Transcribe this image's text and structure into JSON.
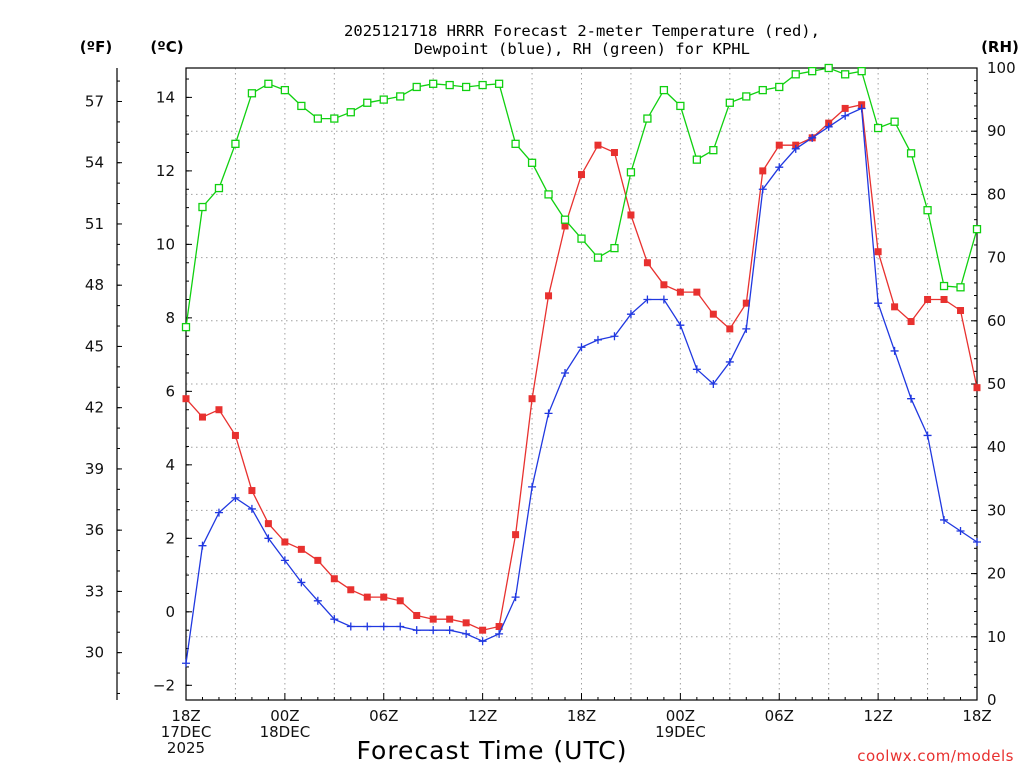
{
  "title": {
    "line1": "2025121718 HRRR Forecast 2-meter Temperature (red),",
    "line2": "Dewpoint (blue), RH (green) for KPHL"
  },
  "units": {
    "fahrenheit": "(ºF)",
    "celsius": "(ºC)",
    "rh": "(RH)"
  },
  "xlabel": "Forecast Time (UTC)",
  "credit": "coolwx.com/models",
  "colors": {
    "temperature": "#e8312f",
    "dewpoint": "#2038e0",
    "rh": "#10d010",
    "grid": "#a0a0a0"
  },
  "chart_data": {
    "type": "line",
    "title": "2025121718 HRRR Forecast 2-meter Temperature (red), Dewpoint (blue), RH (green) for KPHL",
    "xlabel": "Forecast Time (UTC)",
    "x_unit": "forecast hour",
    "x_range": [
      0,
      48
    ],
    "x_ticks": [
      {
        "x": 0,
        "lines": [
          "18Z",
          "17DEC",
          "2025"
        ]
      },
      {
        "x": 6,
        "lines": [
          "00Z",
          "18DEC"
        ]
      },
      {
        "x": 12,
        "lines": [
          "06Z"
        ]
      },
      {
        "x": 18,
        "lines": [
          "12Z"
        ]
      },
      {
        "x": 24,
        "lines": [
          "18Z"
        ]
      },
      {
        "x": 30,
        "lines": [
          "00Z",
          "19DEC"
        ]
      },
      {
        "x": 36,
        "lines": [
          "06Z"
        ]
      },
      {
        "x": 42,
        "lines": [
          "12Z"
        ]
      },
      {
        "x": 48,
        "lines": [
          "18Z"
        ]
      }
    ],
    "y_celsius": {
      "range": [
        -2.4,
        14.8
      ],
      "ticks": [
        -2,
        0,
        2,
        4,
        6,
        8,
        10,
        12,
        14
      ],
      "tick_labels": [
        "−2",
        "0",
        "2",
        "4",
        "6",
        "8",
        "10",
        "12",
        "14"
      ]
    },
    "y_fahrenheit": {
      "ticks": [
        30,
        33,
        36,
        39,
        42,
        45,
        48,
        51,
        54,
        57
      ],
      "tick_labels": [
        "30",
        "33",
        "36",
        "39",
        "42",
        "45",
        "48",
        "51",
        "54",
        "57"
      ]
    },
    "y_rh": {
      "range": [
        0,
        100
      ],
      "ticks": [
        0,
        10,
        20,
        30,
        40,
        50,
        60,
        70,
        80,
        90,
        100
      ],
      "tick_labels": [
        "0",
        "10",
        "20",
        "30",
        "40",
        "50",
        "60",
        "70",
        "80",
        "90",
        "100"
      ]
    },
    "grid": true,
    "hours": [
      0,
      1,
      2,
      3,
      4,
      5,
      6,
      7,
      8,
      9,
      10,
      11,
      12,
      13,
      14,
      15,
      16,
      17,
      18,
      19,
      20,
      21,
      22,
      23,
      24,
      25,
      26,
      27,
      28,
      29,
      30,
      31,
      32,
      33,
      34,
      35,
      36,
      37,
      38,
      39,
      40,
      41,
      42,
      43,
      44,
      45,
      46,
      47,
      48
    ],
    "series": [
      {
        "name": "Temperature",
        "axis": "celsius",
        "marker": "filled-square",
        "values": [
          5.8,
          5.3,
          5.5,
          4.8,
          3.3,
          2.4,
          1.9,
          1.7,
          1.4,
          0.9,
          0.6,
          0.4,
          0.4,
          0.3,
          -0.1,
          -0.2,
          -0.2,
          -0.3,
          -0.5,
          -0.4,
          2.1,
          5.8,
          8.6,
          10.5,
          11.9,
          12.7,
          12.5,
          10.8,
          9.5,
          8.9,
          8.7,
          8.7,
          8.1,
          7.7,
          8.4,
          12.0,
          12.7,
          12.7,
          12.9,
          13.3,
          13.7,
          13.8,
          9.8,
          8.3,
          7.9,
          8.5,
          8.5,
          8.2,
          6.1
        ]
      },
      {
        "name": "Dewpoint",
        "axis": "celsius",
        "marker": "plus",
        "values": [
          -1.4,
          1.8,
          2.7,
          3.1,
          2.8,
          2.0,
          1.4,
          0.8,
          0.3,
          -0.2,
          -0.4,
          -0.4,
          -0.4,
          -0.4,
          -0.5,
          -0.5,
          -0.5,
          -0.6,
          -0.8,
          -0.6,
          0.4,
          3.4,
          5.4,
          6.5,
          7.2,
          7.4,
          7.5,
          8.1,
          8.5,
          8.5,
          7.8,
          6.6,
          6.2,
          6.8,
          7.7,
          11.5,
          12.1,
          12.6,
          12.9,
          13.2,
          13.5,
          13.7,
          8.4,
          7.1,
          5.8,
          4.8,
          2.5,
          2.2,
          1.9
        ]
      },
      {
        "name": "RH",
        "axis": "rh",
        "marker": "open-square",
        "values": [
          59,
          78,
          81,
          88,
          96,
          97.5,
          96.5,
          94,
          92,
          92,
          93,
          94.5,
          95,
          95.5,
          97,
          97.5,
          97.3,
          97,
          97.3,
          97.5,
          88,
          85,
          80,
          76,
          73,
          70,
          71.5,
          83.5,
          92,
          96.5,
          94,
          85.5,
          87,
          94.5,
          95.5,
          96.5,
          97,
          99,
          99.5,
          100,
          99,
          99.5,
          90.5,
          91.5,
          86.5,
          77.5,
          65.5,
          65.3,
          74.5
        ]
      }
    ]
  }
}
